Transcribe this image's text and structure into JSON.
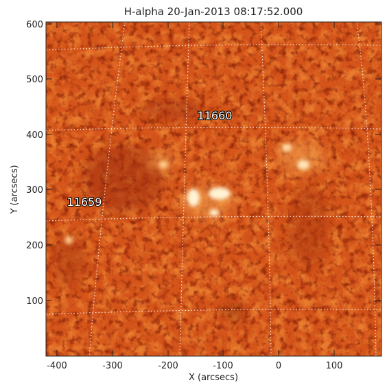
{
  "title": "H-alpha 20-Jan-2013 08:17:52.000",
  "x_axis": {
    "label": "X (arcsecs)",
    "range": [
      -420,
      180
    ],
    "ticks": [
      -400,
      -300,
      -200,
      -100,
      0,
      100
    ],
    "tick_labels": [
      "-400",
      "-300",
      "-200",
      "-100",
      "0",
      "100"
    ]
  },
  "y_axis": {
    "label": "Y (arcsecs)",
    "range": [
      0,
      605
    ],
    "ticks": [
      100,
      200,
      300,
      400,
      500,
      600
    ],
    "tick_labels": [
      "100",
      "200",
      "300",
      "400",
      "500",
      "600"
    ]
  },
  "active_regions": [
    {
      "label": "11660",
      "x": -125,
      "y": 432
    },
    {
      "label": "11659",
      "x": -355,
      "y": 277
    }
  ],
  "colors": {
    "disk_base": "#d4541a",
    "disk_dark": "#9a2c08",
    "disk_light": "#ee8a3a",
    "plage": "#fff3d4",
    "grid": "#ffffff"
  },
  "grid": true
}
